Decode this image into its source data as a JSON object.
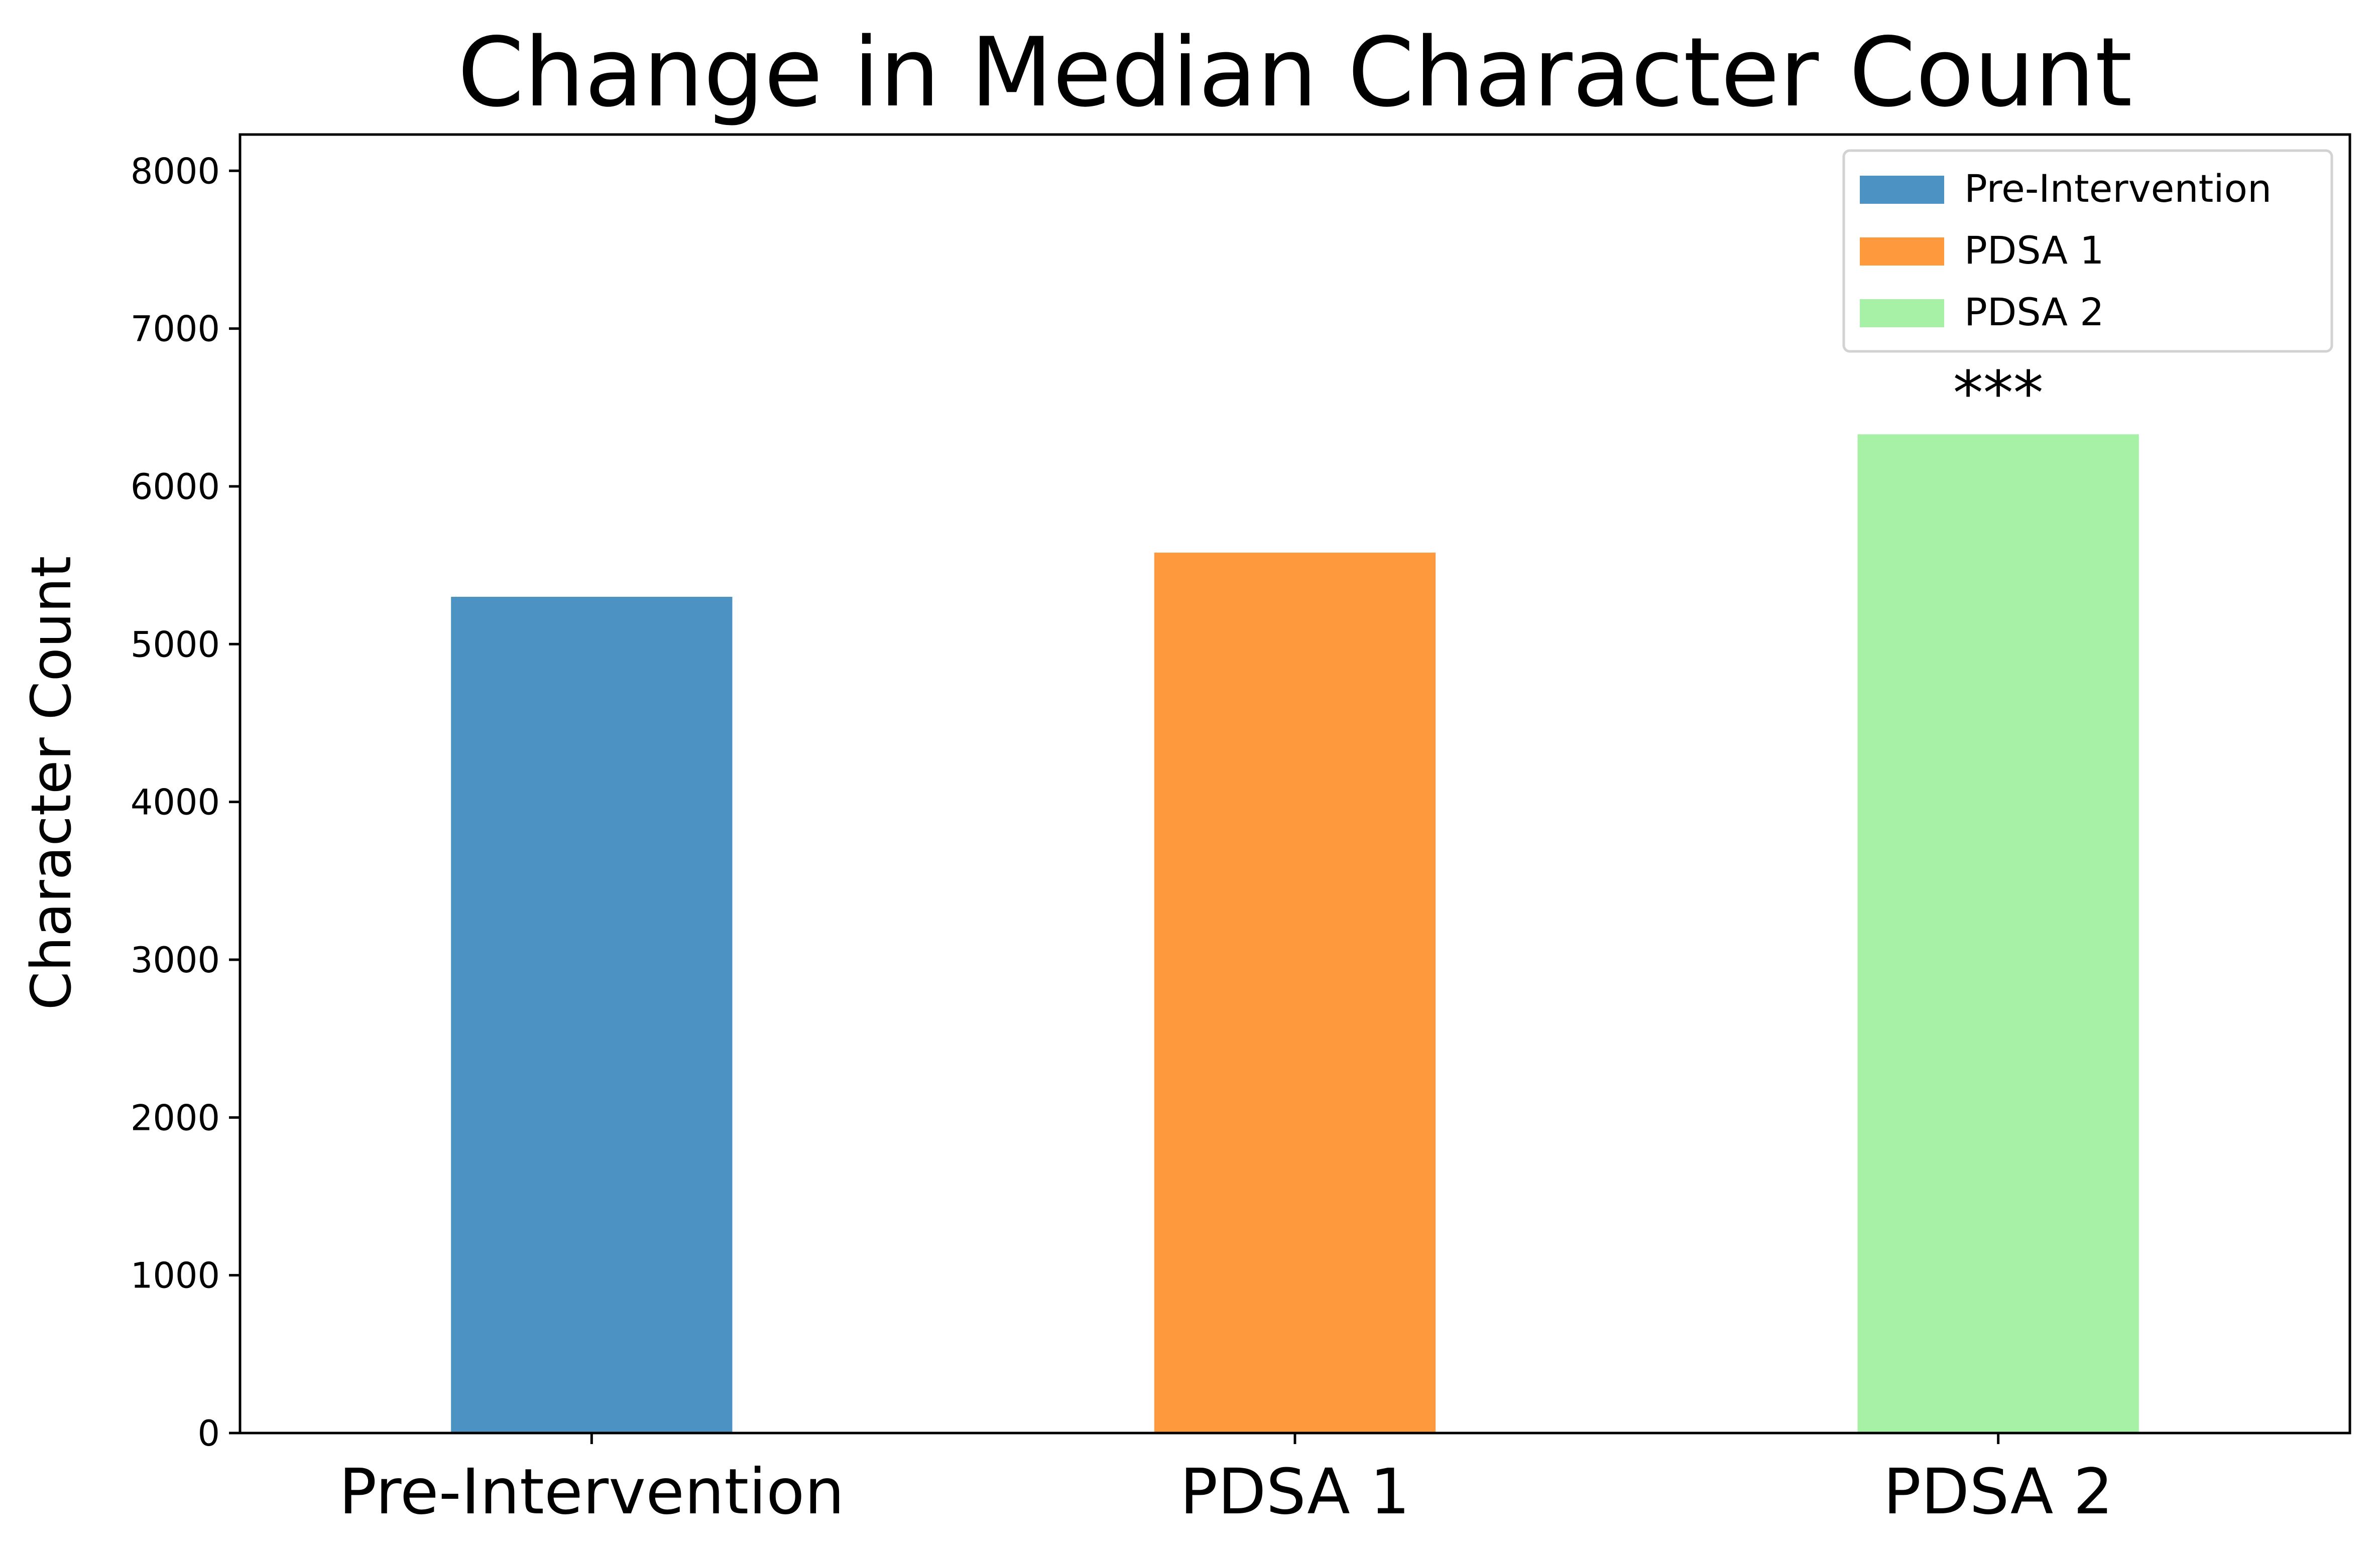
{
  "chart_data": {
    "type": "bar",
    "title": "Change in Median Character Count",
    "xlabel": "",
    "ylabel": "Character Count",
    "categories": [
      "Pre-Intervention",
      "PDSA 1",
      "PDSA 2"
    ],
    "values": [
      5300,
      5580,
      6330
    ],
    "colors": [
      "#4c92c3",
      "#ff993e",
      "#a6f1a6"
    ],
    "ylim": [
      0,
      8230
    ],
    "yticks": [
      0,
      1000,
      2000,
      3000,
      4000,
      5000,
      6000,
      7000,
      8000
    ],
    "grid": false,
    "legend": {
      "position": "top-right",
      "entries": [
        "Pre-Intervention",
        "PDSA 1",
        "PDSA 2"
      ]
    },
    "annotations": [
      {
        "category": "PDSA 2",
        "text": "***"
      }
    ]
  }
}
